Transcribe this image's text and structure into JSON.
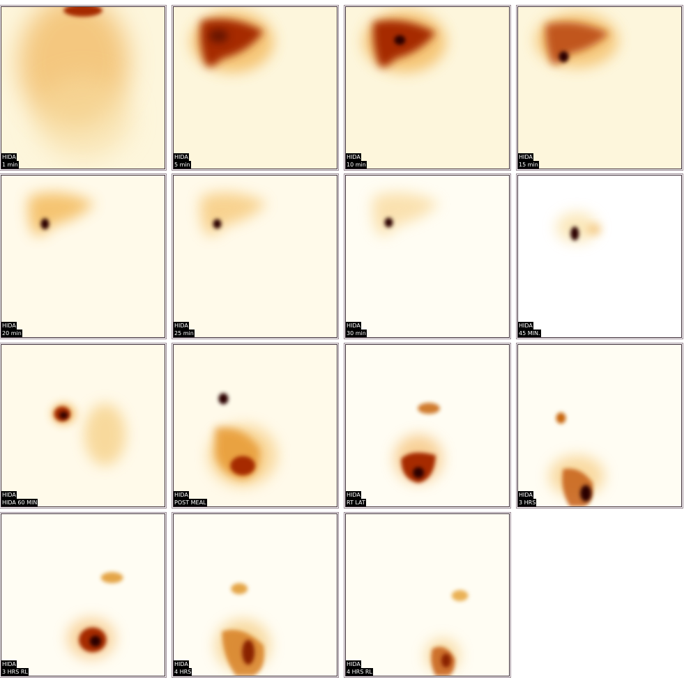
{
  "study": "HIDA",
  "colors": {
    "background": "#ffffff",
    "frame_border": "#3a2a35",
    "frame_outer": "#9a8a94",
    "tracer_low": "#fdf3c8",
    "tracer_mid": "#f0a530",
    "tracer_high": "#a62a05",
    "tracer_peak": "#2a0500",
    "label_bg": "#000000",
    "label_text": "#ffffff"
  },
  "frames": [
    {
      "line1": "HIDA",
      "line2": "1 min"
    },
    {
      "line1": "HIDA",
      "line2": "5 min"
    },
    {
      "line1": "HIDA",
      "line2": "10 min"
    },
    {
      "line1": "HIDA",
      "line2": "15 min"
    },
    {
      "line1": "HIDA",
      "line2": "20 min"
    },
    {
      "line1": "HIDA",
      "line2": "25 min"
    },
    {
      "line1": "HIDA",
      "line2": "30 min"
    },
    {
      "line1": "HIDA",
      "line2": "45 MIN."
    },
    {
      "line1": "HIDA",
      "line2": "HIDA 60 MIN"
    },
    {
      "line1": "HIDA",
      "line2": "POST MEAL"
    },
    {
      "line1": "HIDA",
      "line2": "RT LAT"
    },
    {
      "line1": "HIDA",
      "line2": "3 HRS"
    },
    {
      "line1": "HIDA",
      "line2": "3 HRS RL"
    },
    {
      "line1": "HIDA",
      "line2": "4 HRS"
    },
    {
      "line1": "HIDA",
      "line2": "4 HRS RL"
    }
  ]
}
